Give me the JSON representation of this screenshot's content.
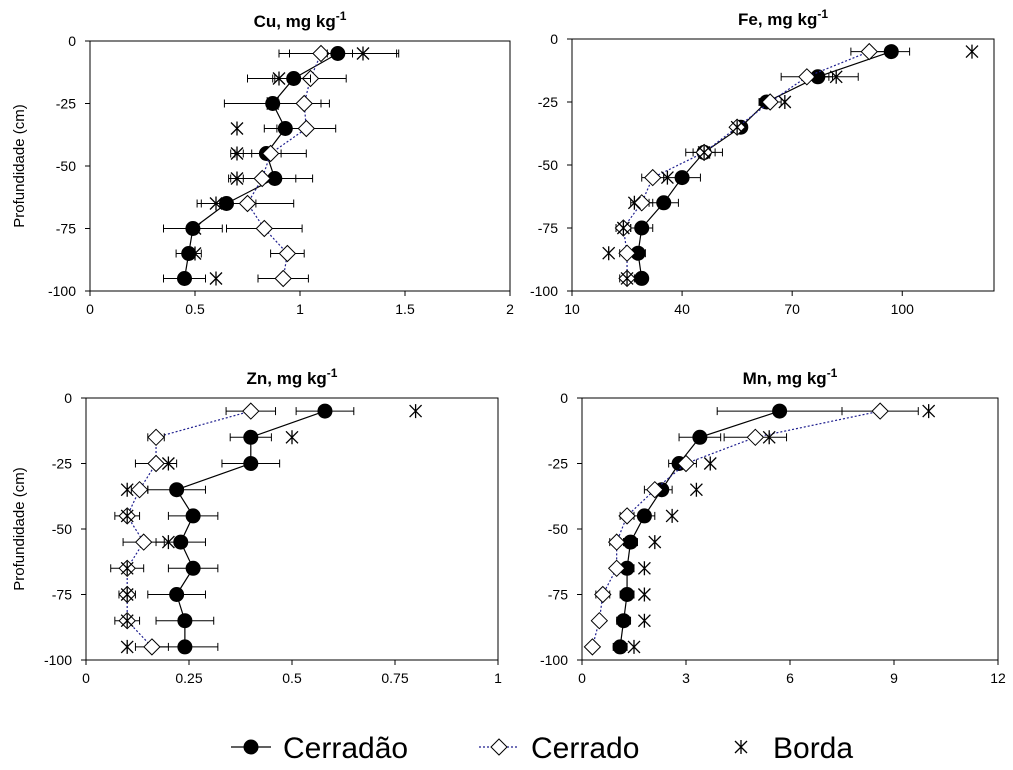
{
  "chart_data": [
    {
      "type": "scatter",
      "title": "Cu, mg kg",
      "title_sup": "-1",
      "ylabel": "Profundidade (cm)",
      "xlim": [
        0,
        2
      ],
      "ylim": [
        -100,
        0
      ],
      "xticks": [
        0,
        0.5,
        1,
        1.5,
        2
      ],
      "xtick_labels": [
        "0",
        "0.5",
        "1",
        "1.5",
        "2"
      ],
      "yticks": [
        0,
        -25,
        -50,
        -75,
        -100
      ],
      "ytick_labels": [
        "0",
        "-25",
        "-50",
        "-75",
        "-100"
      ],
      "depth": [
        -5,
        -15,
        -25,
        -35,
        -45,
        -55,
        -65,
        -75,
        -85,
        -95
      ],
      "series": [
        {
          "name": "Cerradão",
          "values": [
            1.18,
            0.97,
            0.87,
            0.93,
            0.84,
            0.88,
            0.65,
            0.49,
            0.47,
            0.45
          ],
          "err": [
            0.28,
            0.1,
            0.23,
            0.1,
            0.07,
            0.18,
            0.14,
            0.14,
            0.06,
            0.1
          ]
        },
        {
          "name": "Cerrado",
          "values": [
            1.1,
            1.05,
            1.02,
            1.03,
            0.86,
            0.82,
            0.75,
            0.83,
            0.94,
            0.92
          ],
          "err": [
            0.15,
            0.17,
            0.12,
            0.14,
            0.17,
            0.16,
            0.22,
            0.18,
            0.08,
            0.12
          ]
        },
        {
          "name": "Borda",
          "values": [
            1.3,
            0.9,
            0.87,
            0.7,
            0.7,
            0.7,
            0.6,
            0.5,
            0.5,
            0.6
          ],
          "err": [
            0.17,
            0.15,
            0.02,
            0.0,
            0.03,
            0.03,
            0.0,
            0.0,
            0.0,
            0.0
          ]
        }
      ]
    },
    {
      "type": "scatter",
      "title": "Fe, mg kg",
      "title_sup": "-1",
      "ylabel": "",
      "xlim": [
        10,
        125
      ],
      "ylim": [
        -100,
        0
      ],
      "xticks": [
        10,
        40,
        70,
        100
      ],
      "xtick_labels": [
        "10",
        "40",
        "70",
        "100"
      ],
      "yticks": [
        0,
        -25,
        -50,
        -75,
        -100
      ],
      "ytick_labels": [
        "0",
        "-25",
        "-50",
        "-75",
        "-100"
      ],
      "depth": [
        -5,
        -15,
        -25,
        -35,
        -45,
        -55,
        -65,
        -75,
        -85,
        -95
      ],
      "series": [
        {
          "name": "Cerradão",
          "values": [
            97,
            77,
            63,
            56,
            46,
            40,
            35,
            29,
            28,
            29
          ],
          "err": [
            5,
            3,
            2,
            1,
            3,
            5,
            4,
            3,
            2,
            0
          ]
        },
        {
          "name": "Cerrado",
          "values": [
            91,
            74,
            64,
            55,
            46,
            32,
            29,
            24,
            25,
            25
          ],
          "err": [
            5,
            7,
            3,
            1,
            5,
            3,
            3,
            2,
            2,
            2
          ]
        },
        {
          "name": "Borda",
          "values": [
            119,
            82,
            68,
            55,
            46,
            36,
            27,
            24,
            20,
            25
          ],
          "err": [
            0,
            6,
            0,
            0,
            0,
            0,
            0,
            0,
            0,
            0
          ]
        }
      ]
    },
    {
      "type": "scatter",
      "title": "Zn, mg kg",
      "title_sup": "-1",
      "ylabel": "Profundidade (cm)",
      "xlim": [
        0,
        1
      ],
      "ylim": [
        -100,
        0
      ],
      "xticks": [
        0,
        0.25,
        0.5,
        0.75,
        1
      ],
      "xtick_labels": [
        "0",
        "0.25",
        "0.5",
        "0.75",
        "1"
      ],
      "yticks": [
        0,
        -25,
        -50,
        -75,
        -100
      ],
      "ytick_labels": [
        "0",
        "-25",
        "-50",
        "-75",
        "-100"
      ],
      "depth": [
        -5,
        -15,
        -25,
        -35,
        -45,
        -55,
        -65,
        -75,
        -85,
        -95
      ],
      "series": [
        {
          "name": "Cerradão",
          "values": [
            0.58,
            0.4,
            0.4,
            0.22,
            0.26,
            0.23,
            0.26,
            0.22,
            0.24,
            0.24
          ],
          "err": [
            0.07,
            0.05,
            0.07,
            0.07,
            0.06,
            0.06,
            0.06,
            0.07,
            0.07,
            0.08
          ]
        },
        {
          "name": "Cerrado",
          "values": [
            0.4,
            0.17,
            0.17,
            0.13,
            0.1,
            0.14,
            0.1,
            0.1,
            0.1,
            0.16
          ],
          "err": [
            0.06,
            0.02,
            0.05,
            0.02,
            0.03,
            0.05,
            0.04,
            0.02,
            0.03,
            0.04
          ]
        },
        {
          "name": "Borda",
          "values": [
            0.8,
            0.5,
            0.2,
            0.1,
            0.1,
            0.2,
            0.1,
            0.1,
            0.1,
            0.1
          ],
          "err": [
            0,
            0,
            0,
            0,
            0,
            0,
            0,
            0,
            0,
            0
          ]
        }
      ]
    },
    {
      "type": "scatter",
      "title": "Mn, mg kg",
      "title_sup": "-1",
      "ylabel": "",
      "xlim": [
        0,
        12
      ],
      "ylim": [
        -100,
        0
      ],
      "xticks": [
        0,
        3,
        6,
        9,
        12
      ],
      "xtick_labels": [
        "0",
        "3",
        "6",
        "9",
        "12"
      ],
      "yticks": [
        0,
        -25,
        -50,
        -75,
        -100
      ],
      "ytick_labels": [
        "0",
        "-25",
        "-50",
        "-75",
        "-100"
      ],
      "depth": [
        -5,
        -15,
        -25,
        -35,
        -45,
        -55,
        -65,
        -75,
        -85,
        -95
      ],
      "series": [
        {
          "name": "Cerradão",
          "values": [
            5.7,
            3.4,
            2.8,
            2.3,
            1.8,
            1.4,
            1.3,
            1.3,
            1.2,
            1.1
          ],
          "err": [
            1.8,
            0.6,
            0.3,
            0.3,
            0.3,
            0.2,
            0.2,
            0.2,
            0.2,
            0.2
          ]
        },
        {
          "name": "Cerrado",
          "values": [
            8.6,
            5.0,
            3.0,
            2.1,
            1.3,
            1.0,
            1.0,
            0.6,
            0.5,
            0.3
          ],
          "err": [
            1.1,
            0.9,
            0.3,
            0.3,
            0.2,
            0.2,
            0.1,
            0.2,
            0.1,
            0.1
          ]
        },
        {
          "name": "Borda",
          "values": [
            10.0,
            5.4,
            3.7,
            3.3,
            2.6,
            2.1,
            1.8,
            1.8,
            1.8,
            1.5
          ],
          "err": [
            0,
            0,
            0,
            0,
            0,
            0,
            0,
            0,
            0,
            0
          ]
        }
      ]
    }
  ],
  "legend": {
    "items": [
      {
        "label": "Cerradão",
        "marker": "filled-circle",
        "line": "solid"
      },
      {
        "label": "Cerrado",
        "marker": "open-diamond",
        "line": "dotted"
      },
      {
        "label": "Borda",
        "marker": "asterisk",
        "line": "none"
      }
    ]
  },
  "colors": {
    "line": "#000000",
    "dotted_line": "#1f1f8f",
    "background": "#ffffff"
  }
}
